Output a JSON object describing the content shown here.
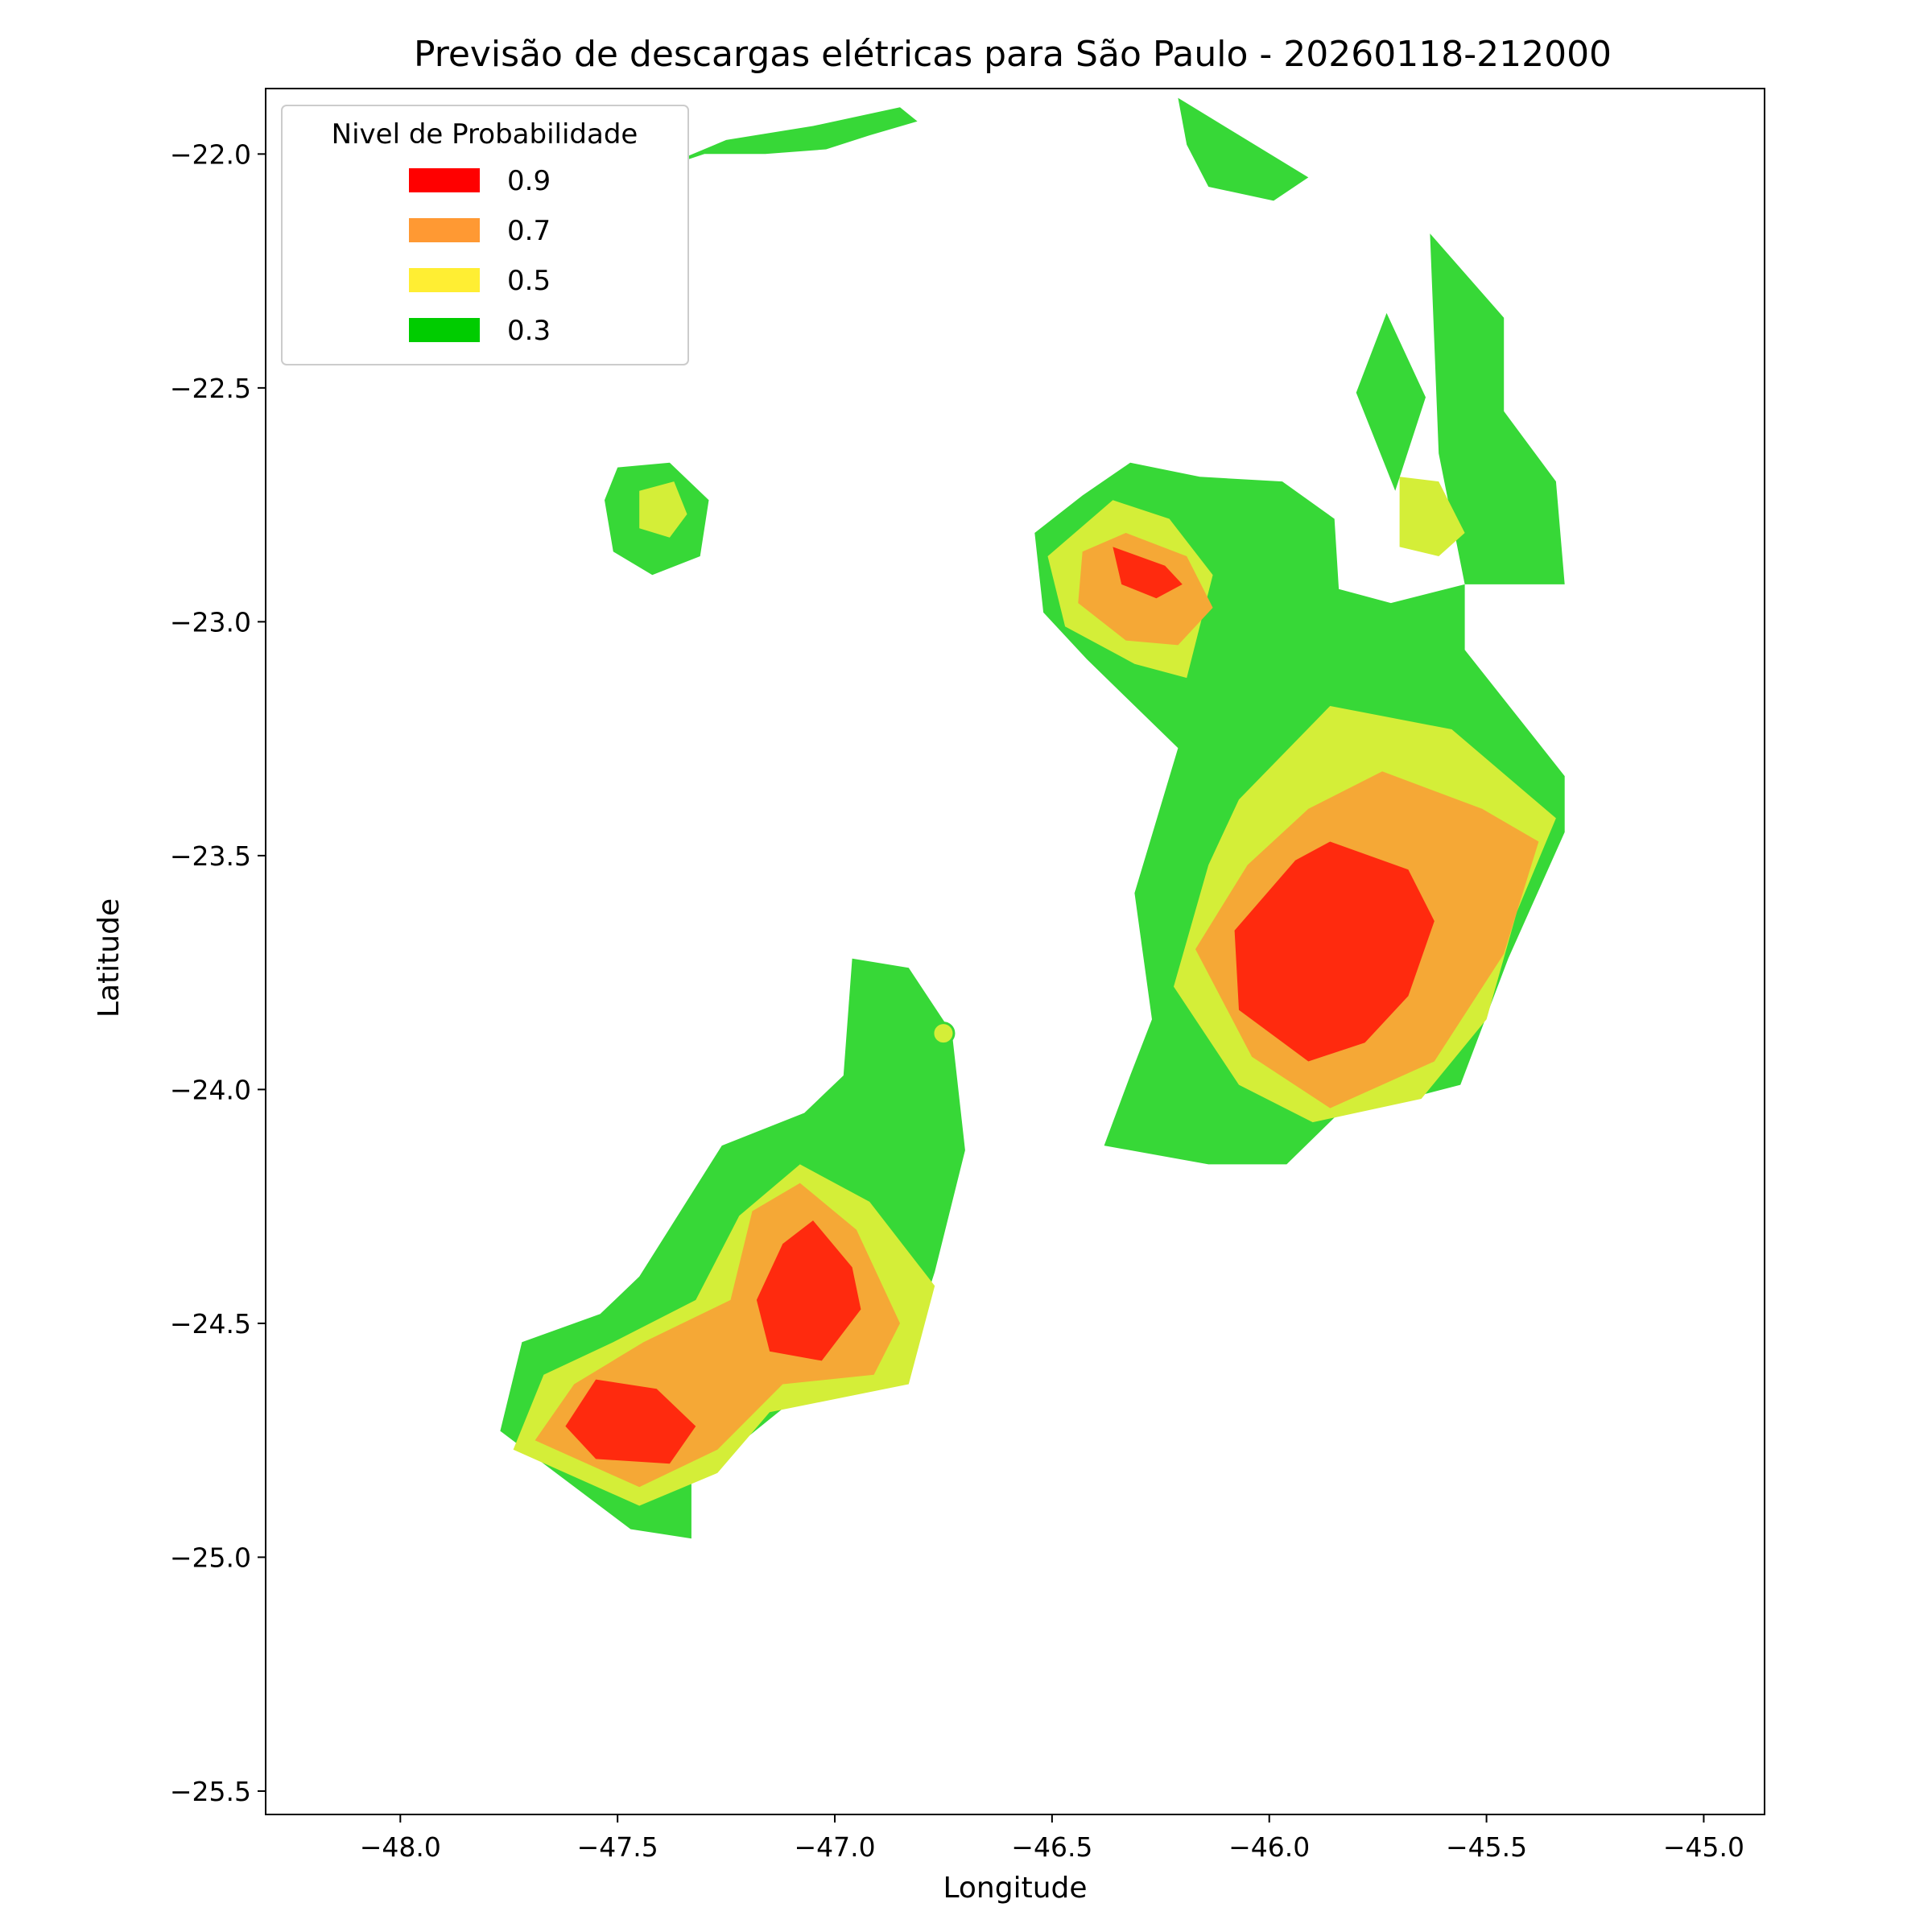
{
  "chart_data": {
    "type": "contour",
    "title": "Previsão de descargas elétricas para São Paulo - 20260118-212000",
    "xlabel": "Longitude",
    "ylabel": "Latitude",
    "xlim": [
      -48.31,
      -44.86
    ],
    "ylim": [
      -25.55,
      -21.86
    ],
    "xticks": [
      -48.0,
      -47.5,
      -47.0,
      -46.5,
      -46.0,
      -45.5,
      -45.0
    ],
    "xtick_labels": [
      "−48.0",
      "−47.5",
      "−47.0",
      "−46.5",
      "−46.0",
      "−45.5",
      "−45.0"
    ],
    "yticks": [
      -22.0,
      -22.5,
      -23.0,
      -23.5,
      -24.0,
      -24.5,
      -25.0,
      -25.5
    ],
    "ytick_labels": [
      "−22.0",
      "−22.5",
      "−23.0",
      "−23.5",
      "−24.0",
      "−24.5",
      "−25.0",
      "−25.5"
    ],
    "grid": false,
    "legend": {
      "title": "Nivel de Probabilidade",
      "placement": "top-left",
      "entries": [
        {
          "label": "0.9",
          "color": "#ff0000"
        },
        {
          "label": "0.7",
          "color": "#ff9933"
        },
        {
          "label": "0.5",
          "color": "#ffee33"
        },
        {
          "label": "0.3",
          "color": "#00cc00"
        }
      ]
    },
    "fill_colors": {
      "0.3": "#37d837",
      "0.5": "#d4ee38",
      "0.7": "#f5a836",
      "0.9": "#ff2a0e"
    },
    "regions": [
      {
        "level": "0.3",
        "points": [
          [
            -47.43,
            -22.04
          ],
          [
            -47.25,
            -21.97
          ],
          [
            -47.05,
            -21.94
          ],
          [
            -46.85,
            -21.9
          ],
          [
            -46.81,
            -21.93
          ],
          [
            -46.92,
            -21.96
          ],
          [
            -47.02,
            -21.99
          ],
          [
            -47.16,
            -22.0
          ],
          [
            -47.3,
            -22.0
          ]
        ]
      },
      {
        "level": "0.3",
        "points": [
          [
            -46.21,
            -21.88
          ],
          [
            -45.91,
            -22.05
          ],
          [
            -45.99,
            -22.1
          ],
          [
            -46.14,
            -22.07
          ],
          [
            -46.19,
            -21.98
          ]
        ]
      },
      {
        "level": "0.3",
        "points": [
          [
            -45.63,
            -22.17
          ],
          [
            -45.46,
            -22.35
          ],
          [
            -45.46,
            -22.55
          ],
          [
            -45.34,
            -22.7
          ],
          [
            -45.32,
            -22.92
          ],
          [
            -45.55,
            -22.92
          ],
          [
            -45.61,
            -22.64
          ]
        ]
      },
      {
        "level": "0.3",
        "points": [
          [
            -45.73,
            -22.34
          ],
          [
            -45.64,
            -22.52
          ],
          [
            -45.71,
            -22.72
          ],
          [
            -45.8,
            -22.51
          ]
        ]
      },
      {
        "level": "0.3",
        "points": [
          [
            -47.5,
            -22.67
          ],
          [
            -47.38,
            -22.66
          ],
          [
            -47.29,
            -22.74
          ],
          [
            -47.31,
            -22.86
          ],
          [
            -47.42,
            -22.9
          ],
          [
            -47.51,
            -22.85
          ],
          [
            -47.53,
            -22.74
          ]
        ]
      },
      {
        "level": "0.5",
        "points": [
          [
            -47.45,
            -22.72
          ],
          [
            -47.37,
            -22.7
          ],
          [
            -47.34,
            -22.77
          ],
          [
            -47.38,
            -22.82
          ],
          [
            -47.45,
            -22.8
          ]
        ]
      },
      {
        "level": "0.3",
        "points": [
          [
            -46.43,
            -22.73
          ],
          [
            -46.32,
            -22.66
          ],
          [
            -46.16,
            -22.69
          ],
          [
            -45.97,
            -22.7
          ],
          [
            -45.85,
            -22.78
          ],
          [
            -45.84,
            -22.93
          ],
          [
            -45.72,
            -22.96
          ],
          [
            -45.55,
            -22.92
          ],
          [
            -45.55,
            -23.06
          ],
          [
            -45.32,
            -23.33
          ],
          [
            -45.32,
            -23.45
          ],
          [
            -45.45,
            -23.72
          ],
          [
            -45.56,
            -23.99
          ],
          [
            -45.85,
            -24.06
          ],
          [
            -45.96,
            -24.16
          ],
          [
            -46.14,
            -24.16
          ],
          [
            -46.38,
            -24.12
          ],
          [
            -46.32,
            -23.97
          ],
          [
            -46.27,
            -23.85
          ],
          [
            -46.31,
            -23.58
          ],
          [
            -46.21,
            -23.27
          ],
          [
            -46.42,
            -23.08
          ],
          [
            -46.52,
            -22.98
          ],
          [
            -46.54,
            -22.81
          ]
        ]
      },
      {
        "level": "0.5",
        "points": [
          [
            -46.36,
            -22.74
          ],
          [
            -46.23,
            -22.78
          ],
          [
            -46.13,
            -22.9
          ],
          [
            -46.19,
            -23.12
          ],
          [
            -46.31,
            -23.09
          ],
          [
            -46.47,
            -23.01
          ],
          [
            -46.51,
            -22.86
          ]
        ]
      },
      {
        "level": "0.7",
        "points": [
          [
            -46.33,
            -22.81
          ],
          [
            -46.19,
            -22.86
          ],
          [
            -46.13,
            -22.97
          ],
          [
            -46.21,
            -23.05
          ],
          [
            -46.33,
            -23.04
          ],
          [
            -46.44,
            -22.96
          ],
          [
            -46.43,
            -22.85
          ]
        ]
      },
      {
        "level": "0.9",
        "points": [
          [
            -46.36,
            -22.84
          ],
          [
            -46.24,
            -22.88
          ],
          [
            -46.2,
            -22.92
          ],
          [
            -46.26,
            -22.95
          ],
          [
            -46.34,
            -22.92
          ]
        ]
      },
      {
        "level": "0.5",
        "points": [
          [
            -45.7,
            -22.69
          ],
          [
            -45.61,
            -22.7
          ],
          [
            -45.55,
            -22.81
          ],
          [
            -45.61,
            -22.86
          ],
          [
            -45.7,
            -22.84
          ]
        ]
      },
      {
        "level": "0.5",
        "points": [
          [
            -45.86,
            -23.18
          ],
          [
            -45.58,
            -23.23
          ],
          [
            -45.34,
            -23.42
          ],
          [
            -45.43,
            -23.62
          ],
          [
            -45.5,
            -23.85
          ],
          [
            -45.65,
            -24.02
          ],
          [
            -45.9,
            -24.07
          ],
          [
            -46.07,
            -23.99
          ],
          [
            -46.22,
            -23.78
          ],
          [
            -46.14,
            -23.52
          ],
          [
            -46.07,
            -23.38
          ]
        ]
      },
      {
        "level": "0.7",
        "points": [
          [
            -45.74,
            -23.32
          ],
          [
            -45.51,
            -23.4
          ],
          [
            -45.38,
            -23.47
          ],
          [
            -45.46,
            -23.71
          ],
          [
            -45.62,
            -23.94
          ],
          [
            -45.86,
            -24.04
          ],
          [
            -46.04,
            -23.93
          ],
          [
            -46.17,
            -23.7
          ],
          [
            -46.05,
            -23.52
          ],
          [
            -45.91,
            -23.4
          ]
        ]
      },
      {
        "level": "0.9",
        "points": [
          [
            -45.86,
            -23.47
          ],
          [
            -45.68,
            -23.53
          ],
          [
            -45.62,
            -23.64
          ],
          [
            -45.68,
            -23.8
          ],
          [
            -45.78,
            -23.9
          ],
          [
            -45.91,
            -23.94
          ],
          [
            -46.07,
            -23.83
          ],
          [
            -46.08,
            -23.66
          ],
          [
            -45.94,
            -23.51
          ]
        ]
      },
      {
        "level": "0.3",
        "points": [
          [
            -46.96,
            -23.72
          ],
          [
            -46.83,
            -23.74
          ],
          [
            -46.73,
            -23.88
          ],
          [
            -46.7,
            -24.13
          ],
          [
            -46.77,
            -24.39
          ],
          [
            -46.85,
            -24.62
          ],
          [
            -47.09,
            -24.66
          ],
          [
            -47.33,
            -24.84
          ],
          [
            -47.33,
            -24.96
          ],
          [
            -47.47,
            -24.94
          ],
          [
            -47.77,
            -24.73
          ],
          [
            -47.72,
            -24.54
          ],
          [
            -47.54,
            -24.48
          ],
          [
            -47.45,
            -24.4
          ],
          [
            -47.26,
            -24.12
          ],
          [
            -47.07,
            -24.05
          ],
          [
            -46.98,
            -23.97
          ]
        ]
      },
      {
        "level": "0.5",
        "points": [
          [
            -47.08,
            -24.16
          ],
          [
            -46.92,
            -24.24
          ],
          [
            -46.77,
            -24.42
          ],
          [
            -46.83,
            -24.63
          ],
          [
            -47.15,
            -24.69
          ],
          [
            -47.27,
            -24.82
          ],
          [
            -47.45,
            -24.89
          ],
          [
            -47.74,
            -24.77
          ],
          [
            -47.67,
            -24.61
          ],
          [
            -47.51,
            -24.54
          ],
          [
            -47.32,
            -24.45
          ],
          [
            -47.22,
            -24.27
          ]
        ]
      },
      {
        "level": "0.7",
        "points": [
          [
            -47.08,
            -24.2
          ],
          [
            -46.95,
            -24.3
          ],
          [
            -46.85,
            -24.5
          ],
          [
            -46.91,
            -24.61
          ],
          [
            -47.12,
            -24.63
          ],
          [
            -47.27,
            -24.77
          ],
          [
            -47.45,
            -24.85
          ],
          [
            -47.69,
            -24.75
          ],
          [
            -47.6,
            -24.63
          ],
          [
            -47.44,
            -24.54
          ],
          [
            -47.24,
            -24.45
          ],
          [
            -47.19,
            -24.26
          ]
        ]
      },
      {
        "level": "0.9",
        "points": [
          [
            -47.05,
            -24.28
          ],
          [
            -46.96,
            -24.38
          ],
          [
            -46.94,
            -24.47
          ],
          [
            -47.03,
            -24.58
          ],
          [
            -47.15,
            -24.56
          ],
          [
            -47.18,
            -24.45
          ],
          [
            -47.12,
            -24.33
          ]
        ]
      },
      {
        "level": "0.9",
        "points": [
          [
            -47.55,
            -24.62
          ],
          [
            -47.41,
            -24.64
          ],
          [
            -47.32,
            -24.72
          ],
          [
            -47.38,
            -24.8
          ],
          [
            -47.55,
            -24.79
          ],
          [
            -47.62,
            -24.72
          ]
        ]
      }
    ],
    "markers": [
      {
        "level": "0.5",
        "lon": -46.75,
        "lat": -23.88
      }
    ]
  }
}
